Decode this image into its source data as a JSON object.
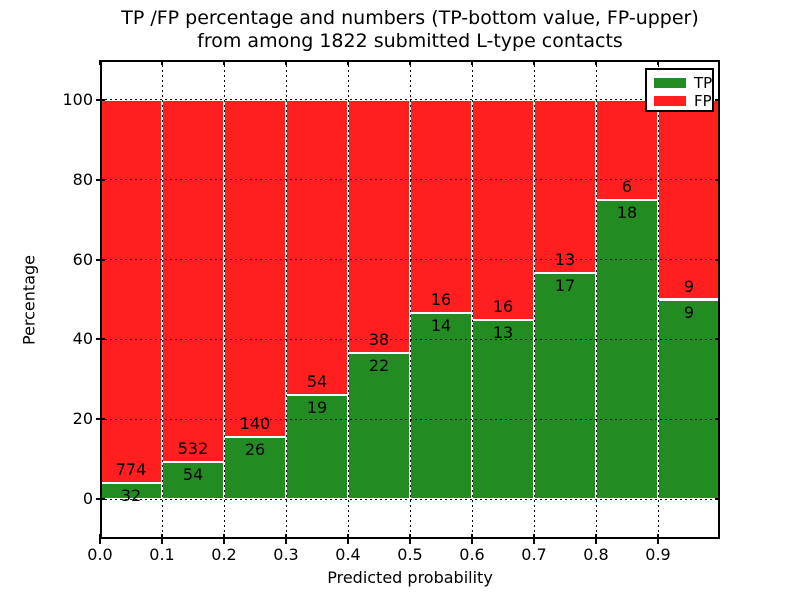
{
  "title": {
    "line1": "TP /FP percentage and numbers (TP-bottom value, FP-upper)",
    "line2": "from among 1822 submitted L-type contacts"
  },
  "axes": {
    "xlabel": "Predicted probability",
    "ylabel": "Percentage",
    "x_ticks": [
      "0.0",
      "0.1",
      "0.2",
      "0.3",
      "0.4",
      "0.5",
      "0.6",
      "0.7",
      "0.8",
      "0.9"
    ],
    "y_ticks": [
      "0",
      "20",
      "40",
      "60",
      "80",
      "100"
    ]
  },
  "legend": {
    "entries": [
      {
        "label": "TP",
        "color": "#228b22"
      },
      {
        "label": "FP",
        "color": "#ff1f1f"
      }
    ],
    "position": "upper right"
  },
  "colors": {
    "tp_green": "#228b22",
    "fp_red": "#ff1f1f",
    "grid": "#000000",
    "bar_edge": "#ffffff",
    "background": "#ffffff"
  },
  "chart_data": {
    "type": "bar",
    "variant": "stacked-percentage",
    "title": "TP /FP percentage and numbers (TP-bottom value, FP-upper) from among 1822 submitted L-type contacts",
    "xlabel": "Predicted probability",
    "ylabel": "Percentage",
    "xlim": [
      0.0,
      1.0
    ],
    "ylim": [
      -10,
      110
    ],
    "grid": true,
    "legend_position": "upper right",
    "bin_edges": [
      0.0,
      0.1,
      0.2,
      0.3,
      0.4,
      0.5,
      0.6,
      0.7,
      0.8,
      0.9,
      1.0
    ],
    "categories": [
      "0.0-0.1",
      "0.1-0.2",
      "0.2-0.3",
      "0.3-0.4",
      "0.4-0.5",
      "0.5-0.6",
      "0.6-0.7",
      "0.7-0.8",
      "0.8-0.9",
      "0.9-1.0"
    ],
    "series": [
      {
        "name": "TP",
        "color": "#228b22",
        "counts": [
          32,
          54,
          26,
          19,
          22,
          14,
          13,
          17,
          18,
          9
        ]
      },
      {
        "name": "FP",
        "color": "#ff1f1f",
        "counts": [
          774,
          532,
          140,
          54,
          38,
          16,
          16,
          13,
          6,
          9
        ]
      }
    ],
    "tp_percent_of_bin": [
      3.97,
      9.22,
      15.66,
      26.03,
      36.67,
      46.67,
      44.83,
      56.67,
      75.0,
      50.0
    ],
    "total_contacts": 1822
  }
}
